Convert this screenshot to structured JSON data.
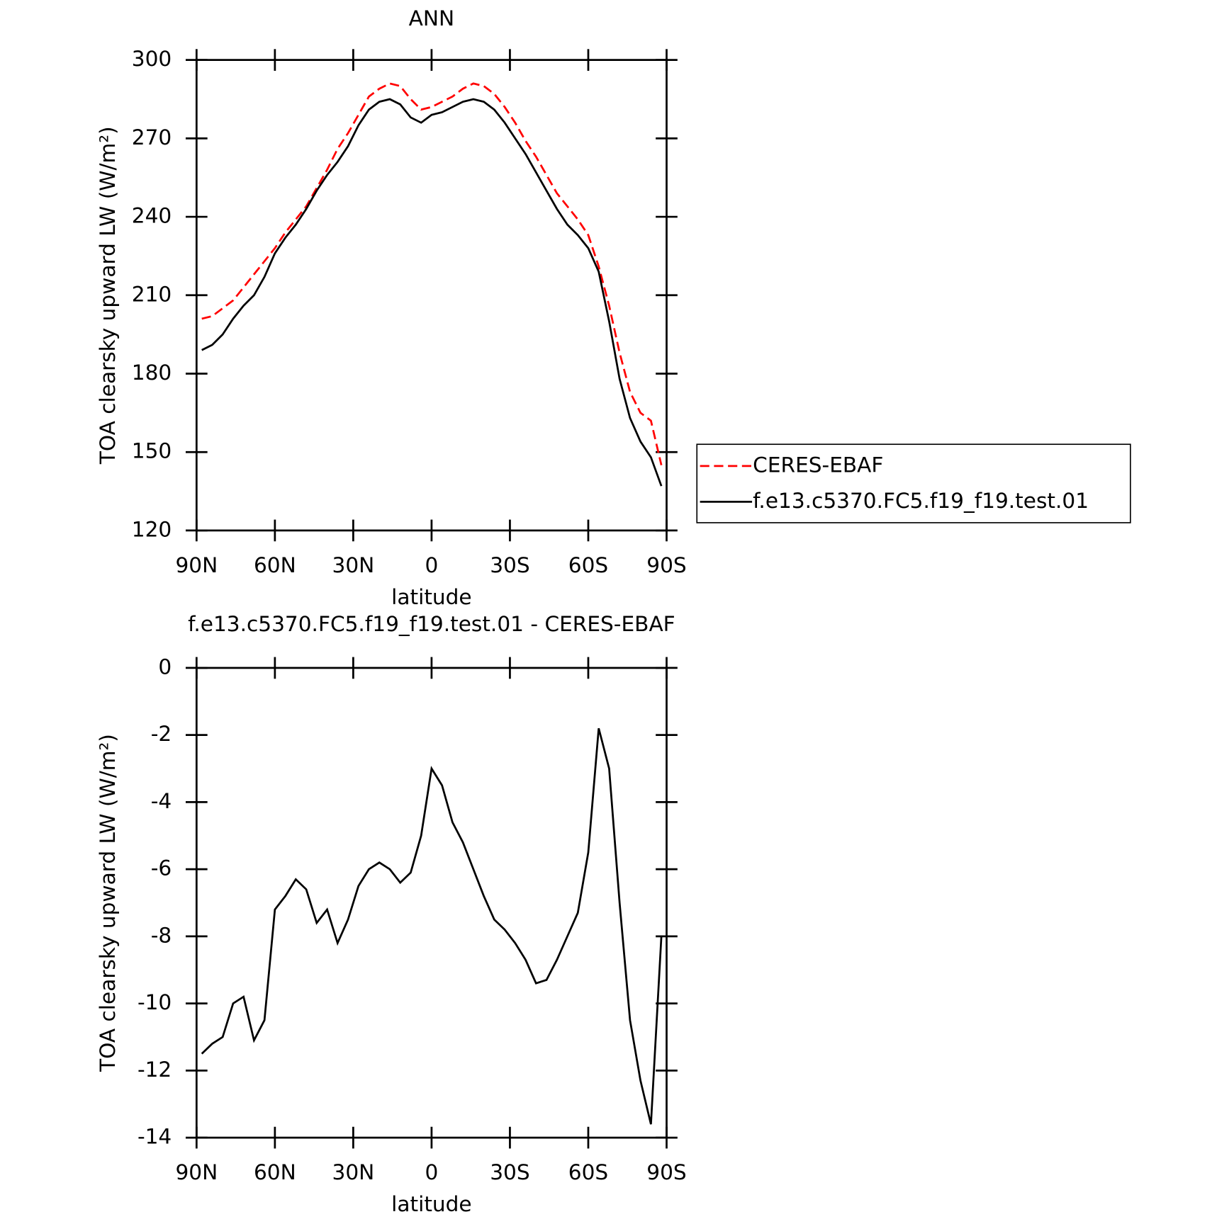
{
  "chart_data": [
    {
      "type": "line",
      "title": "ANN",
      "x_label": "latitude",
      "y_label": "TOA clearsky upward LW (W/m²)",
      "x": [
        88,
        84,
        80,
        76,
        72,
        68,
        64,
        60,
        56,
        52,
        48,
        44,
        40,
        36,
        32,
        28,
        24,
        20,
        16,
        12,
        8,
        4,
        0,
        -4,
        -8,
        -12,
        -16,
        -20,
        -24,
        -28,
        -32,
        -36,
        -40,
        -44,
        -48,
        -52,
        -56,
        -60,
        -64,
        -68,
        -72,
        -76,
        -80,
        -84,
        -88
      ],
      "xlim": [
        90,
        -90
      ],
      "xticks": [
        {
          "value": 90,
          "label": "90N"
        },
        {
          "value": 60,
          "label": "60N"
        },
        {
          "value": 30,
          "label": "30N"
        },
        0,
        {
          "value": -30,
          "label": "30S"
        },
        {
          "value": -60,
          "label": "60S"
        },
        {
          "value": -90,
          "label": "90S"
        }
      ],
      "ylim": [
        120,
        300
      ],
      "yticks": [
        120,
        150,
        180,
        210,
        240,
        270,
        300
      ],
      "legend": "right",
      "series": [
        {
          "name": "CERES-EBAF",
          "color": "#ff0000",
          "dash": true,
          "values": [
            201,
            202,
            205,
            208,
            213,
            218,
            223,
            228,
            234,
            239,
            244,
            251,
            258,
            266,
            272,
            279,
            286,
            289,
            291,
            290,
            285,
            281,
            282,
            284,
            286,
            289,
            291,
            290,
            287,
            282,
            276,
            269,
            263,
            256,
            249,
            244,
            239,
            233,
            221,
            206,
            188,
            173,
            165,
            162,
            145
          ]
        },
        {
          "name": "f.e13.c5370.FC5.f19_f19.test.01",
          "color": "#000000",
          "dash": false,
          "values": [
            189,
            191,
            195,
            201,
            206,
            210,
            217,
            226,
            232,
            237,
            243,
            250,
            256,
            261,
            267,
            275,
            281,
            284,
            285,
            283,
            278,
            276,
            279,
            280,
            282,
            284,
            285,
            284,
            281,
            276,
            270,
            264,
            257,
            250,
            243,
            237,
            233,
            228,
            219,
            200,
            178,
            163,
            154,
            148,
            137
          ]
        }
      ]
    },
    {
      "type": "line",
      "title": "f.e13.c5370.FC5.f19_f19.test.01 - CERES-EBAF",
      "x_label": "latitude",
      "y_label": "TOA clearsky upward LW (W/m²)",
      "x": [
        88,
        84,
        80,
        76,
        72,
        68,
        64,
        60,
        56,
        52,
        48,
        44,
        40,
        36,
        32,
        28,
        24,
        20,
        16,
        12,
        8,
        4,
        0,
        -4,
        -8,
        -12,
        -16,
        -20,
        -24,
        -28,
        -32,
        -36,
        -40,
        -44,
        -48,
        -52,
        -56,
        -60,
        -64,
        -68,
        -72,
        -76,
        -80,
        -84,
        -88
      ],
      "xlim": [
        90,
        -90
      ],
      "xticks": [
        {
          "value": 90,
          "label": "90N"
        },
        {
          "value": 60,
          "label": "60N"
        },
        {
          "value": 30,
          "label": "30N"
        },
        0,
        {
          "value": -30,
          "label": "30S"
        },
        {
          "value": -60,
          "label": "60S"
        },
        {
          "value": -90,
          "label": "90S"
        }
      ],
      "ylim": [
        -14,
        0
      ],
      "yticks": [
        -14,
        -12,
        -10,
        -8,
        -6,
        -4,
        -2,
        0
      ],
      "series": [
        {
          "color": "#000000",
          "dash": false,
          "values": [
            -11.5,
            -11.2,
            -11.0,
            -10.0,
            -9.8,
            -11.1,
            -10.5,
            -7.2,
            -6.8,
            -6.3,
            -6.6,
            -7.6,
            -7.2,
            -8.2,
            -7.5,
            -6.5,
            -6.0,
            -5.8,
            -6.0,
            -6.4,
            -6.1,
            -5.0,
            -3.0,
            -3.5,
            -4.6,
            -5.2,
            -6.0,
            -6.8,
            -7.5,
            -7.8,
            -8.2,
            -8.7,
            -9.4,
            -9.3,
            -8.7,
            -8.0,
            -7.3,
            -5.5,
            -1.8,
            -3.0,
            -7.0,
            -10.5,
            -12.3,
            -13.6,
            -8.0
          ]
        }
      ]
    }
  ]
}
